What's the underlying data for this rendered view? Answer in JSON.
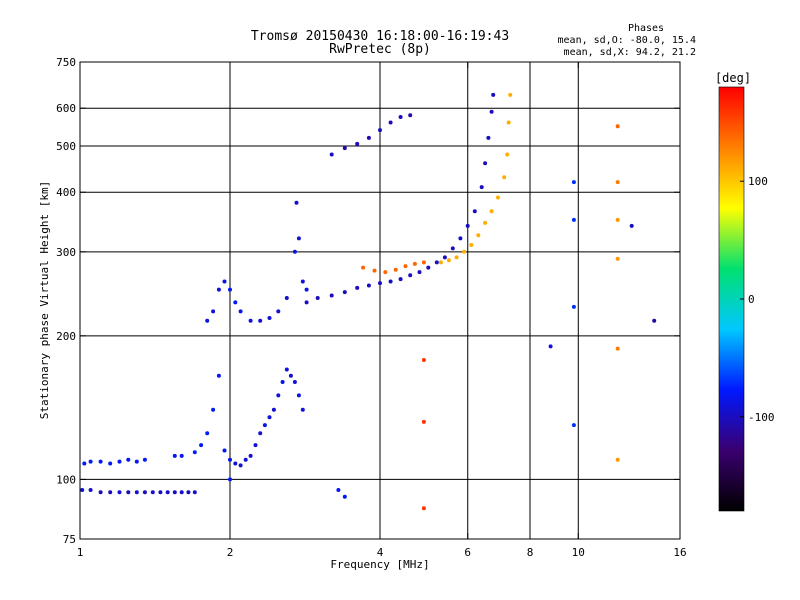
{
  "chart_data": {
    "type": "scatter",
    "title": "Tromsø 20150430 16:18:00-16:19:43",
    "subtitle": "RwPretec (8p)",
    "phases_title": "Phases",
    "phases_stats": [
      "mean, sd,O: -80.0, 15.4",
      "mean, sd,X:  94.2, 21.2"
    ],
    "xlabel": "Frequency [MHz]",
    "ylabel": "Stationary phase Virtual Height [km]",
    "xscale": "log",
    "yscale": "log",
    "xlim": [
      1,
      16
    ],
    "ylim": [
      75,
      750
    ],
    "xticks": [
      1,
      2,
      4,
      6,
      8,
      10,
      16
    ],
    "xtick_labels": [
      "1",
      "2",
      "4",
      "6",
      "8",
      "10",
      "16"
    ],
    "yticks": [
      75,
      100,
      200,
      300,
      400,
      500,
      600,
      750
    ],
    "ytick_labels": [
      "75",
      "100",
      "200",
      "300",
      "400",
      "500",
      "600",
      "750"
    ],
    "x_gridlines": [
      2,
      4,
      6,
      8,
      10
    ],
    "y_gridlines": [
      100,
      200,
      300,
      400,
      500,
      600
    ],
    "grid": true,
    "colorbar": {
      "label": "[deg]",
      "range": [
        -180,
        180
      ],
      "ticks": [
        100,
        0,
        -100
      ],
      "tick_labels": [
        "100",
        "0",
        "-100"
      ],
      "stops": [
        "#000000",
        "#3a0070",
        "#0018ff",
        "#00c8ff",
        "#00e070",
        "#ffff00",
        "#ff8000",
        "#ff0000"
      ]
    },
    "series": [
      {
        "points": [
          [
            1.02,
            108,
            -80
          ],
          [
            1.05,
            109,
            -80
          ],
          [
            1.1,
            109,
            -80
          ],
          [
            1.15,
            108,
            -80
          ],
          [
            1.2,
            109,
            -80
          ],
          [
            1.25,
            110,
            -80
          ],
          [
            1.3,
            109,
            -80
          ],
          [
            1.35,
            110,
            -80
          ]
        ]
      },
      {
        "points": [
          [
            1.01,
            95,
            -90
          ],
          [
            1.05,
            95,
            -95
          ],
          [
            1.1,
            94,
            -100
          ],
          [
            1.15,
            94,
            -100
          ],
          [
            1.2,
            94,
            -95
          ],
          [
            1.25,
            94,
            -100
          ],
          [
            1.3,
            94,
            -95
          ],
          [
            1.35,
            94,
            -100
          ],
          [
            1.4,
            94,
            -95
          ],
          [
            1.45,
            94,
            -100
          ],
          [
            1.5,
            94,
            -95
          ],
          [
            1.55,
            94,
            -100
          ],
          [
            1.6,
            94,
            -95
          ],
          [
            1.65,
            94,
            -100
          ],
          [
            1.7,
            94,
            -95
          ]
        ]
      },
      {
        "points": [
          [
            1.55,
            112,
            -80
          ],
          [
            1.6,
            112,
            -80
          ],
          [
            1.7,
            114,
            -75
          ],
          [
            1.75,
            118,
            -80
          ],
          [
            1.8,
            125,
            -75
          ],
          [
            1.85,
            140,
            -80
          ],
          [
            1.9,
            165,
            -80
          ],
          [
            1.95,
            115,
            -80
          ],
          [
            2.0,
            110,
            -85
          ],
          [
            2.05,
            108,
            -90
          ],
          [
            2.1,
            107,
            -95
          ],
          [
            2.15,
            110,
            -90
          ],
          [
            2.2,
            112,
            -95
          ],
          [
            2.25,
            118,
            -90
          ],
          [
            2.3,
            125,
            -90
          ],
          [
            2.35,
            130,
            -85
          ],
          [
            2.4,
            135,
            -90
          ],
          [
            2.45,
            140,
            -95
          ],
          [
            2.5,
            150,
            -90
          ],
          [
            2.55,
            160,
            -85
          ],
          [
            2.6,
            170,
            -90
          ],
          [
            2.65,
            165,
            -95
          ],
          [
            2.7,
            160,
            -90
          ],
          [
            2.75,
            150,
            -85
          ],
          [
            2.8,
            140,
            -90
          ]
        ]
      },
      {
        "points": [
          [
            1.8,
            215,
            -90
          ],
          [
            1.85,
            225,
            -90
          ],
          [
            1.9,
            250,
            -90
          ],
          [
            1.95,
            260,
            -85
          ],
          [
            2.0,
            250,
            -80
          ],
          [
            2.05,
            235,
            -80
          ],
          [
            2.1,
            225,
            -85
          ],
          [
            2.2,
            215,
            -90
          ],
          [
            2.3,
            215,
            -90
          ],
          [
            2.4,
            218,
            -90
          ],
          [
            2.5,
            225,
            -95
          ],
          [
            2.6,
            240,
            -95
          ],
          [
            2.7,
            300,
            -90
          ],
          [
            2.72,
            380,
            -95
          ],
          [
            2.75,
            320,
            -90
          ],
          [
            2.8,
            260,
            -90
          ],
          [
            2.85,
            250,
            -85
          ]
        ]
      },
      {
        "points": [
          [
            2.85,
            235,
            -100
          ],
          [
            3.0,
            240,
            -100
          ],
          [
            3.2,
            243,
            -100
          ],
          [
            3.4,
            247,
            -100
          ],
          [
            3.6,
            252,
            -100
          ],
          [
            3.8,
            255,
            -100
          ],
          [
            4.0,
            258,
            -100
          ],
          [
            4.2,
            260,
            -100
          ],
          [
            4.4,
            263,
            -100
          ],
          [
            4.6,
            268,
            -100
          ],
          [
            4.8,
            272,
            -100
          ],
          [
            5.0,
            278,
            -100
          ],
          [
            5.2,
            285,
            -100
          ],
          [
            5.4,
            292,
            -100
          ],
          [
            5.6,
            305,
            -100
          ],
          [
            5.8,
            320,
            -100
          ],
          [
            6.0,
            340,
            -100
          ],
          [
            6.2,
            365,
            -100
          ],
          [
            6.4,
            410,
            -100
          ],
          [
            6.5,
            460,
            -100
          ],
          [
            6.6,
            520,
            -100
          ],
          [
            6.7,
            590,
            -100
          ],
          [
            6.75,
            640,
            -100
          ]
        ]
      },
      {
        "points": [
          [
            3.2,
            480,
            -100
          ],
          [
            3.4,
            495,
            -105
          ],
          [
            3.6,
            505,
            -100
          ],
          [
            3.8,
            520,
            -105
          ],
          [
            4.0,
            540,
            -100
          ],
          [
            4.2,
            560,
            -105
          ],
          [
            4.4,
            575,
            -100
          ],
          [
            4.6,
            580,
            -105
          ]
        ]
      },
      {
        "points": [
          [
            3.7,
            278,
            140
          ],
          [
            3.9,
            274,
            140
          ],
          [
            4.1,
            272,
            140
          ],
          [
            4.3,
            275,
            140
          ],
          [
            4.5,
            280,
            140
          ],
          [
            4.7,
            283,
            140
          ],
          [
            4.9,
            285,
            140
          ]
        ]
      },
      {
        "points": [
          [
            5.3,
            285,
            110
          ],
          [
            5.5,
            288,
            110
          ],
          [
            5.7,
            292,
            110
          ],
          [
            5.9,
            300,
            110
          ],
          [
            6.1,
            310,
            110
          ],
          [
            6.3,
            325,
            110
          ],
          [
            6.5,
            345,
            110
          ],
          [
            6.7,
            365,
            110
          ],
          [
            6.9,
            390,
            110
          ],
          [
            7.1,
            430,
            110
          ],
          [
            7.2,
            480,
            110
          ],
          [
            7.25,
            560,
            110
          ],
          [
            7.3,
            640,
            110
          ]
        ]
      },
      {
        "points": [
          [
            2.0,
            100,
            -80
          ],
          [
            3.3,
            95,
            -80
          ],
          [
            3.4,
            92,
            -80
          ],
          [
            4.9,
            178,
            160
          ],
          [
            4.9,
            132,
            160
          ],
          [
            4.9,
            87,
            160
          ],
          [
            8.8,
            190,
            -90
          ],
          [
            9.8,
            420,
            -70
          ],
          [
            9.8,
            350,
            -70
          ],
          [
            9.8,
            230,
            -70
          ],
          [
            9.8,
            130,
            -70
          ],
          [
            12.0,
            550,
            140
          ],
          [
            12.0,
            420,
            130
          ],
          [
            12.0,
            350,
            120
          ],
          [
            12.0,
            290,
            120
          ],
          [
            12.0,
            188,
            130
          ],
          [
            12.0,
            110,
            120
          ],
          [
            12.8,
            340,
            -100
          ],
          [
            14.2,
            215,
            -110
          ]
        ]
      }
    ]
  }
}
